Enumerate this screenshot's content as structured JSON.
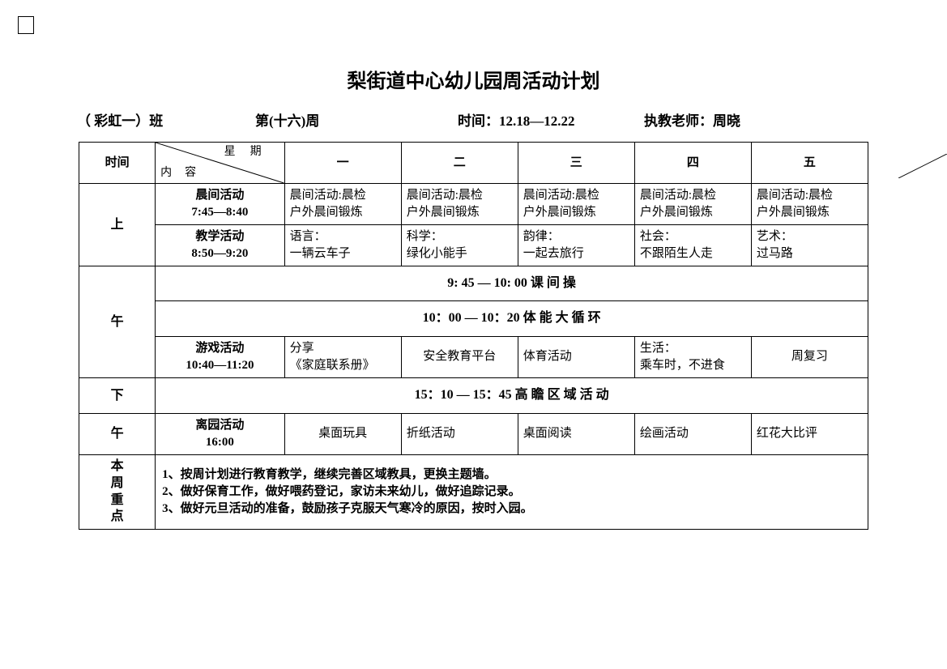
{
  "title": "梨街道中心幼儿园周活动计划",
  "subtitle": {
    "class": "（ 彩虹一）班",
    "week": "第(十六)周",
    "time": "时间：12.18—12.22",
    "teacher": "执教老师：周晓"
  },
  "header": {
    "time_col": "时间",
    "diag_top": "星期",
    "diag_bot": "内容",
    "d1": "一",
    "d2": "二",
    "d3": "三",
    "d4": "四",
    "d5": "五"
  },
  "period_labels": {
    "morning": "上",
    "noon": "午",
    "afternoon1": "下",
    "afternoon2": "午",
    "focus": "本\n周\n重\n点"
  },
  "rows": {
    "morning_activity": {
      "label": "晨间活动\n7:45—8:40",
      "c1": "晨间活动:晨检\n户外晨间锻炼",
      "c2": "晨间活动:晨检\n户外晨间锻炼",
      "c3": "晨间活动:晨检\n户外晨间锻炼",
      "c4": "晨间活动:晨检\n户外晨间锻炼",
      "c5": "晨间活动:晨检\n户外晨间锻炼"
    },
    "teaching": {
      "label": "教学活动\n8:50—9:20",
      "c1": "语言：\n 一辆云车子",
      "c2": "科学：\n绿化小能手",
      "c3": "韵律：\n一起去旅行",
      "c4": "社会：\n不跟陌生人走",
      "c5": "艺术：\n过马路"
    },
    "break_ex": "9: 45  —   10:   00     课   间   操",
    "pe_loop": "10：00  —   10：20     体  能  大  循  环",
    "game": {
      "label": "游戏活动\n10:40—11:20",
      "c1": "分享\n《家庭联系册》",
      "c2": "安全教育平台",
      "c3": "体育活动",
      "c4": "生活：\n乘车时，不进食",
      "c5": "周复习"
    },
    "region": "15：10  —  15：45     高  瞻  区  域  活  动",
    "leave": {
      "label": "离园活动\n16:00",
      "c1": "桌面玩具",
      "c2": "折纸活动",
      "c3": "桌面阅读",
      "c4": "绘画活动",
      "c5": "红花大比评"
    }
  },
  "focus": {
    "line1": "1、按周计划进行教育教学，继续完善区域教具，更换主题墙。",
    "line2": "2、做好保育工作，做好喂药登记，家访未来幼儿，做好追踪记录。",
    "line3": "3、做好元旦活动的准备，鼓励孩子克服天气寒冷的原因，按时入园。"
  }
}
